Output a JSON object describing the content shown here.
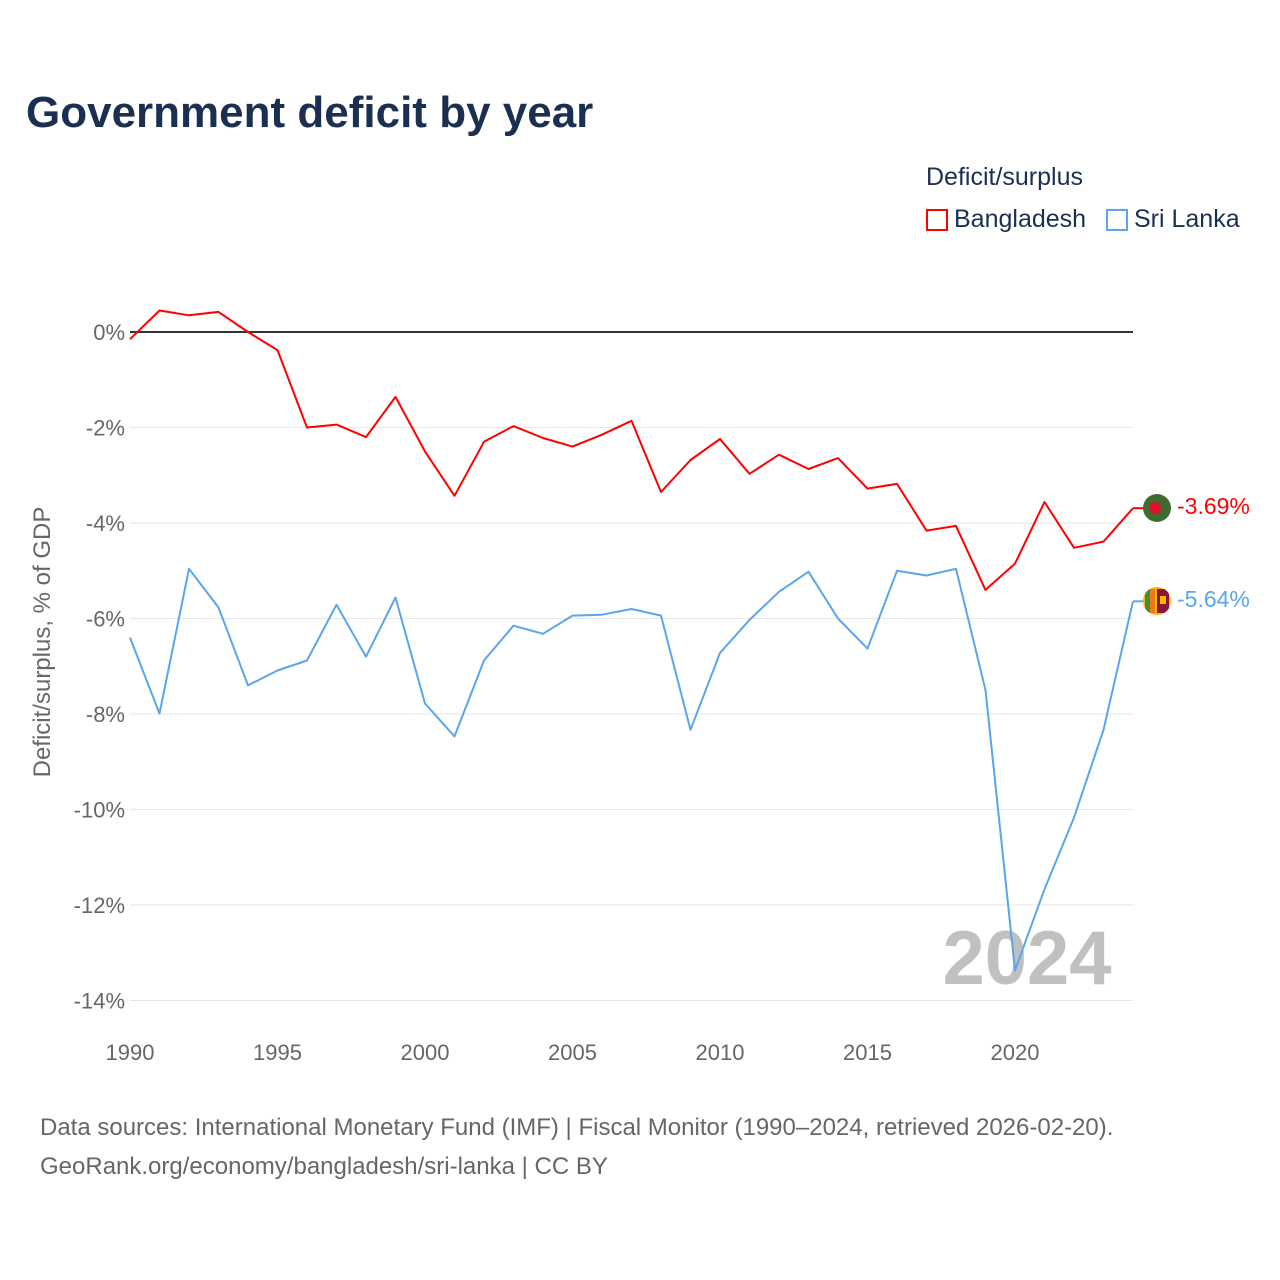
{
  "chart_data": {
    "type": "line",
    "title": "Government deficit by year",
    "ylabel": "Deficit/surplus, % of GDP",
    "xlabel": "",
    "ylim": [
      -14,
      0.8
    ],
    "xlim": [
      1990,
      2024
    ],
    "yticks": [
      0,
      -2,
      -4,
      -6,
      -8,
      -10,
      -12,
      -14
    ],
    "ytick_labels": [
      "0%",
      "-2%",
      "-4%",
      "-6%",
      "-8%",
      "-10%",
      "-12%",
      "-14%"
    ],
    "xticks": [
      1990,
      1995,
      2000,
      2005,
      2010,
      2015,
      2020
    ],
    "xtick_labels": [
      "1990",
      "1995",
      "2000",
      "2005",
      "2010",
      "2015",
      "2020"
    ],
    "legend_title": "Deficit/surplus",
    "legend_position": "top-right",
    "year_watermark": "2024",
    "x": [
      1990,
      1991,
      1992,
      1993,
      1994,
      1995,
      1996,
      1997,
      1998,
      1999,
      2000,
      2001,
      2002,
      2003,
      2004,
      2005,
      2006,
      2007,
      2008,
      2009,
      2010,
      2011,
      2012,
      2013,
      2014,
      2015,
      2016,
      2017,
      2018,
      2019,
      2020,
      2021,
      2022,
      2023,
      2024
    ],
    "series": [
      {
        "name": "Bangladesh",
        "color": "#ff0000",
        "end_label": "-3.69%",
        "values": [
          -0.15,
          0.45,
          0.35,
          0.42,
          0.0,
          -0.38,
          -2.0,
          -1.94,
          -2.2,
          -1.36,
          -2.5,
          -3.43,
          -2.3,
          -1.97,
          -2.22,
          -2.4,
          -2.15,
          -1.86,
          -3.35,
          -2.68,
          -2.24,
          -2.97,
          -2.57,
          -2.87,
          -2.64,
          -3.28,
          -3.18,
          -4.16,
          -4.06,
          -5.4,
          -4.85,
          -3.56,
          -4.52,
          -4.39,
          -3.69
        ]
      },
      {
        "name": "Sri Lanka",
        "color": "#5aa5ec",
        "end_label": "-5.64%",
        "values": [
          -6.4,
          -7.99,
          -4.96,
          -5.77,
          -7.4,
          -7.09,
          -6.88,
          -5.71,
          -6.8,
          -5.56,
          -7.78,
          -8.47,
          -6.88,
          -6.15,
          -6.32,
          -5.94,
          -5.92,
          -5.8,
          -5.94,
          -8.33,
          -6.72,
          -6.03,
          -5.44,
          -5.02,
          -6.0,
          -6.63,
          -5.0,
          -5.1,
          -4.96,
          -7.5,
          -13.37,
          -11.67,
          -10.17,
          -8.33,
          -5.64
        ]
      }
    ]
  },
  "footer": {
    "line1": "Data sources: International Monetary Fund (IMF) | Fiscal Monitor (1990–2024, retrieved 2026-02-20).",
    "line2": "GeoRank.org/economy/bangladesh/sri-lanka | CC BY"
  }
}
